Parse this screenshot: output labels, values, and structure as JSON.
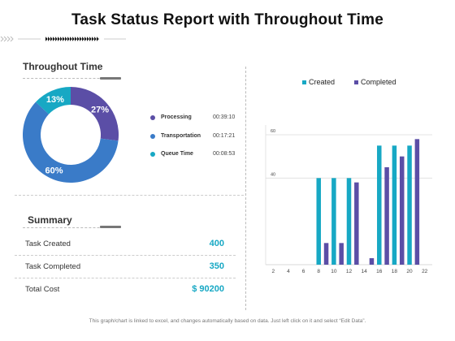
{
  "title": "Task Status Report with Throughout Time",
  "throughout": {
    "heading": "Throughout Time",
    "legend": [
      {
        "label": "Processing",
        "time": "00:39:10",
        "color": "#5b4ea6"
      },
      {
        "label": "Transportation",
        "time": "00:17:21",
        "color": "#3a7bc8"
      },
      {
        "label": "Queue Time",
        "time": "00:08:53",
        "color": "#17a8c4"
      }
    ]
  },
  "summary": {
    "heading": "Summary",
    "rows": [
      {
        "label": "Task Created",
        "value": "400"
      },
      {
        "label": "Task Completed",
        "value": "350"
      },
      {
        "label": "Total Cost",
        "value": "$ 90200"
      }
    ]
  },
  "footer": "This graph/chart is linked to excel, and changes automatically based on data. Just left click on it and select “Edit Data”.",
  "chart_data": [
    {
      "type": "pie",
      "categories": [
        "Processing",
        "Transportation",
        "Queue Time"
      ],
      "values": [
        27,
        60,
        13
      ],
      "labels": [
        "27%",
        "60%",
        "13%"
      ],
      "colors": [
        "#5b4ea6",
        "#3a7bc8",
        "#17a8c4"
      ],
      "donut": true
    },
    {
      "type": "bar",
      "x": [
        2,
        4,
        6,
        8,
        10,
        12,
        14,
        16,
        18,
        20,
        22
      ],
      "xticks": [
        "2",
        "4",
        "6",
        "8",
        "10",
        "12",
        "14",
        "16",
        "18",
        "20",
        "22"
      ],
      "yticks": [
        "40",
        "60"
      ],
      "ylim": [
        0,
        66
      ],
      "xlim": [
        1,
        23
      ],
      "grid": true,
      "legend_position": "top",
      "series": [
        {
          "name": "Created",
          "color": "#17a8c4",
          "x": [
            8,
            10,
            12,
            16,
            18,
            20
          ],
          "values": [
            40,
            40,
            40,
            55,
            55,
            55
          ]
        },
        {
          "name": "Completed",
          "color": "#5b4ea6",
          "x": [
            9,
            11,
            13,
            15,
            17,
            19,
            21
          ],
          "values": [
            10,
            10,
            38,
            3,
            45,
            50,
            58
          ]
        }
      ]
    }
  ]
}
